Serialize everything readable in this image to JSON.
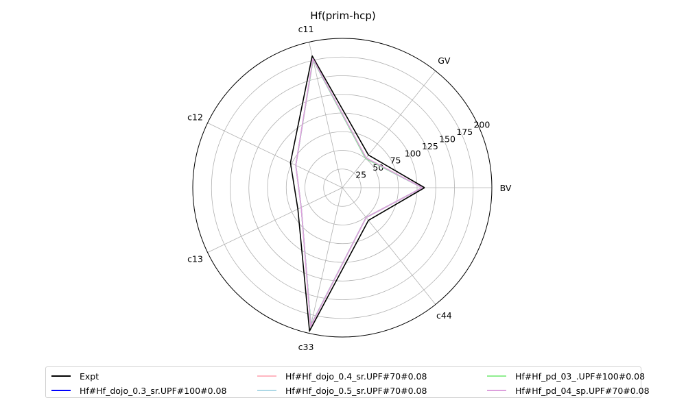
{
  "chart_data": {
    "type": "radar",
    "title": "Hf(prim-hcp)",
    "axes": [
      "BV",
      "GV",
      "c11",
      "c12",
      "c13",
      "c33",
      "c44"
    ],
    "rlim": [
      0,
      200
    ],
    "rticks": [
      25,
      50,
      75,
      100,
      125,
      150,
      175,
      200
    ],
    "grid": true,
    "legend_position": "bottom",
    "series": [
      {
        "name": "Expt",
        "color": "#000000",
        "values": [
          110,
          56,
          181,
          77,
          66,
          197,
          56
        ]
      },
      {
        "name": "Hf#Hf_dojo_0.3_sr.UPF#100#0.08",
        "color": "#0000ff",
        "values": [
          107,
          50,
          176,
          69,
          61,
          189,
          51
        ]
      },
      {
        "name": "Hf#Hf_dojo_0.4_sr.UPF#70#0.08",
        "color": "#ffb6c1",
        "values": [
          107,
          51,
          176,
          69,
          61,
          190,
          51
        ]
      },
      {
        "name": "Hf#Hf_dojo_0.5_sr.UPF#70#0.08",
        "color": "#add8e6",
        "values": [
          107,
          50,
          176,
          69,
          61,
          189,
          51
        ]
      },
      {
        "name": "Hf#Hf_pd_03_.UPF#100#0.08",
        "color": "#90ee90",
        "values": [
          107,
          50,
          176,
          69,
          61,
          189,
          51
        ]
      },
      {
        "name": "Hf#Hf_pd_04_sp.UPF#70#0.08",
        "color": "#dda0dd",
        "values": [
          107,
          51,
          177,
          69,
          61,
          190,
          51
        ]
      }
    ]
  }
}
